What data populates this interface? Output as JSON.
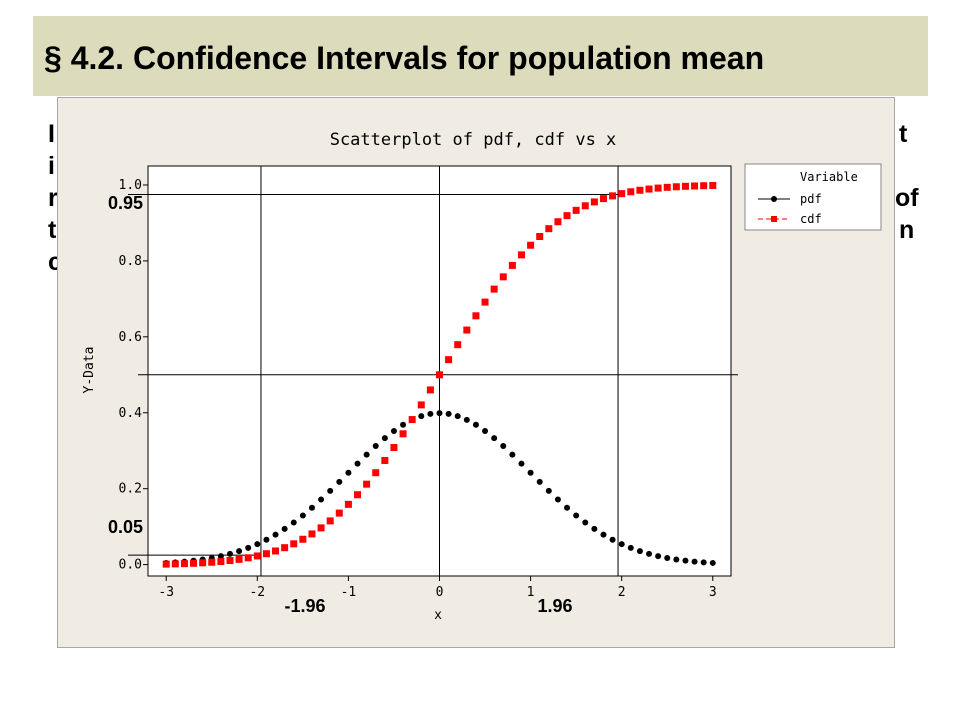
{
  "slide": {
    "title": "§ 4.2. Confidence Intervals for population mean",
    "body_fragments": {
      "line1_left": "I",
      "line1_right": "t",
      "line2_left": "i",
      "line3_left": "r",
      "line3_right": "of",
      "line4_left": "t",
      "line4_right": "n",
      "line5_left": "c"
    }
  },
  "chart_data": {
    "type": "scatter",
    "title": "Scatterplot of pdf, cdf vs x",
    "xlabel": "x",
    "ylabel": "Y-Data",
    "xlim": [
      -3.2,
      3.2
    ],
    "ylim": [
      -0.03,
      1.05
    ],
    "xticks": [
      -3,
      -2,
      -1,
      0,
      1,
      2,
      3
    ],
    "xtick_labels": [
      "-3",
      "-2",
      "-1",
      "0",
      "1",
      "2",
      "3"
    ],
    "yticks": [
      0.0,
      0.2,
      0.4,
      0.6,
      0.8,
      1.0
    ],
    "ytick_labels": [
      "0.0",
      "0.2",
      "0.4",
      "0.6",
      "0.8",
      "1.0"
    ],
    "legend": {
      "title": "Variable",
      "position": "top-right",
      "entries": [
        "pdf",
        "cdf"
      ]
    },
    "x_start": -3.0,
    "x_step": 0.1,
    "series": [
      {
        "name": "pdf",
        "color": "#000000",
        "marker": "circle",
        "values": [
          0.0044,
          0.006,
          0.0079,
          0.0104,
          0.0136,
          0.0175,
          0.0224,
          0.0283,
          0.0355,
          0.044,
          0.054,
          0.0656,
          0.079,
          0.094,
          0.1109,
          0.1295,
          0.1497,
          0.1714,
          0.1942,
          0.2179,
          0.242,
          0.2661,
          0.2897,
          0.3123,
          0.3332,
          0.3521,
          0.3683,
          0.3814,
          0.391,
          0.397,
          0.3989,
          0.397,
          0.391,
          0.3814,
          0.3683,
          0.3521,
          0.3332,
          0.3123,
          0.2897,
          0.2661,
          0.242,
          0.2179,
          0.1942,
          0.1714,
          0.1497,
          0.1295,
          0.1109,
          0.094,
          0.079,
          0.0656,
          0.054,
          0.044,
          0.0355,
          0.0283,
          0.0224,
          0.0175,
          0.0136,
          0.0104,
          0.0079,
          0.006,
          0.0044
        ]
      },
      {
        "name": "cdf",
        "color": "#ff0000",
        "marker": "square",
        "values": [
          0.0013,
          0.0019,
          0.0026,
          0.0035,
          0.0047,
          0.0062,
          0.0082,
          0.0107,
          0.0139,
          0.0179,
          0.0228,
          0.0287,
          0.0359,
          0.0446,
          0.0548,
          0.0668,
          0.0808,
          0.0968,
          0.1151,
          0.1357,
          0.1587,
          0.1841,
          0.2119,
          0.242,
          0.2743,
          0.3085,
          0.3446,
          0.3821,
          0.4207,
          0.4602,
          0.5,
          0.5398,
          0.5793,
          0.6179,
          0.6554,
          0.6915,
          0.7257,
          0.758,
          0.7881,
          0.8159,
          0.8413,
          0.8643,
          0.8849,
          0.9032,
          0.9192,
          0.9332,
          0.9452,
          0.9554,
          0.9641,
          0.9713,
          0.9772,
          0.9821,
          0.9861,
          0.9893,
          0.9918,
          0.9938,
          0.9953,
          0.9965,
          0.9974,
          0.9981,
          0.9987
        ]
      }
    ],
    "reference_lines": {
      "vertical": [
        0,
        -1.96,
        1.96
      ],
      "horizontal": [
        0.5,
        0.975,
        0.025
      ]
    },
    "annotations": {
      "y_high": "0.95",
      "y_low": "0.05",
      "x_left": "-1.96",
      "x_right": "1.96"
    }
  }
}
